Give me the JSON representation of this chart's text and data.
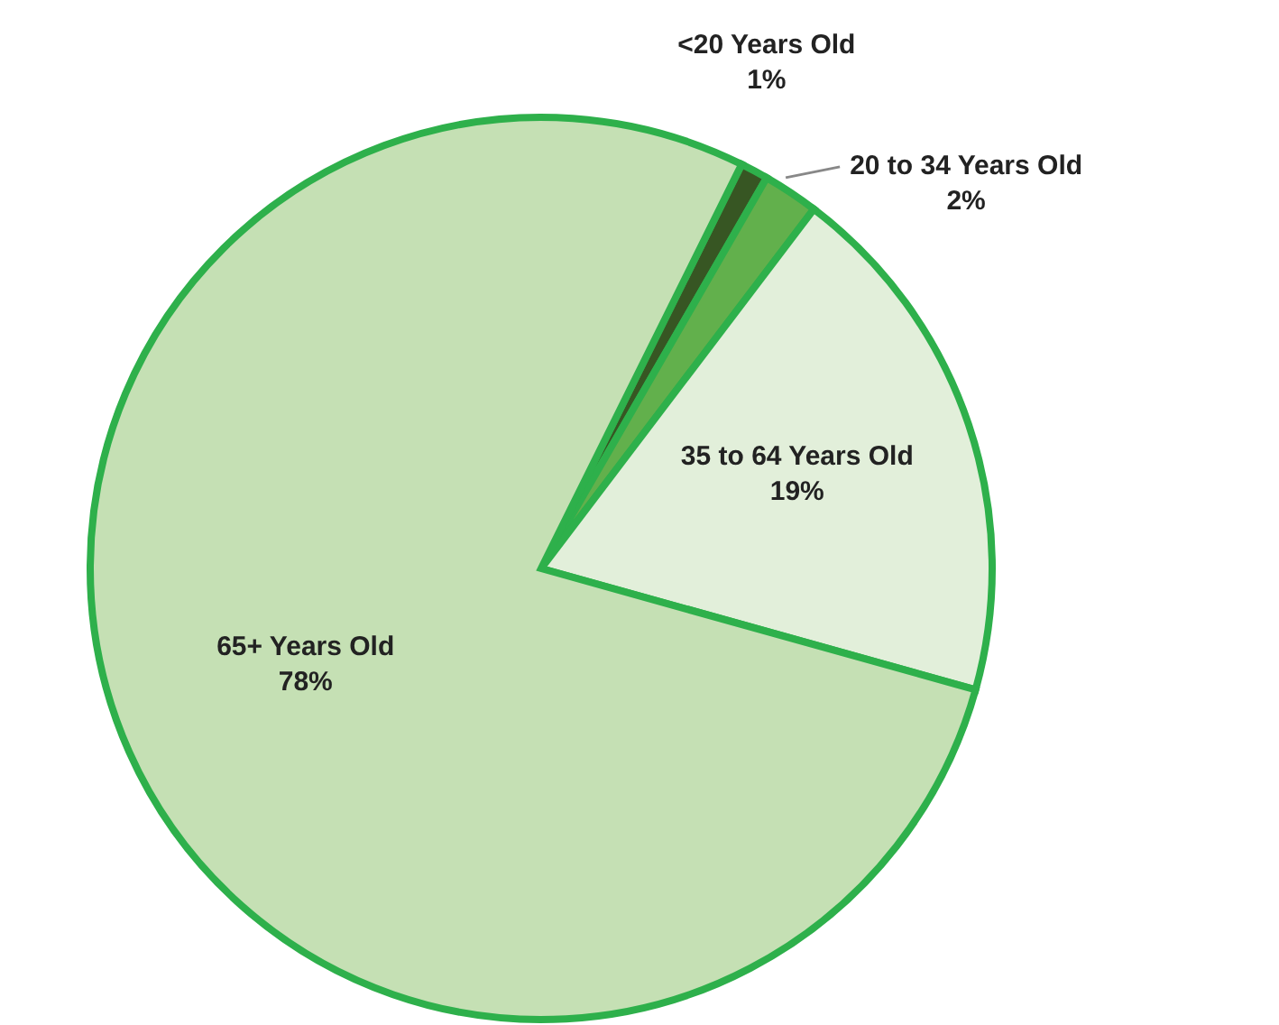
{
  "chart_data": {
    "type": "pie",
    "categories": [
      "<20 Years Old",
      "20 to 34 Years Old",
      "35 to 64 Years Old",
      "65+ Years Old"
    ],
    "values": [
      1,
      2,
      19,
      78
    ],
    "value_labels": [
      "1%",
      "2%",
      "19%",
      "78%"
    ],
    "colors": [
      "#375623",
      "#62b04c",
      "#e2efda",
      "#c5e0b4"
    ]
  }
}
